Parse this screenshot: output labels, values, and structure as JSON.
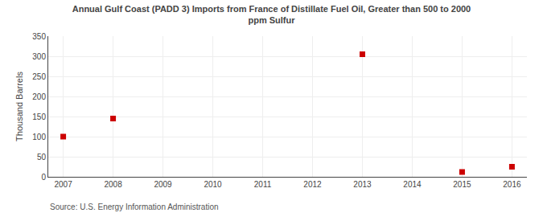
{
  "chart_data": {
    "type": "scatter",
    "title": "Annual Gulf Coast (PADD 3) Imports from France of Distillate Fuel Oil, Greater than 500 to 2000\nppm Sulfur",
    "ylabel": "Thousand Barrels",
    "annotations": [
      "Source: U.S. Energy Information Administration"
    ],
    "x": [
      2007,
      2008,
      2013,
      2015,
      2016
    ],
    "values": [
      100,
      145,
      305,
      12,
      25
    ],
    "color": "#cc0000",
    "marker": "square",
    "xlim": [
      2006.7,
      2016.3
    ],
    "xticks": [
      2007,
      2008,
      2009,
      2010,
      2011,
      2012,
      2013,
      2014,
      2015,
      2016
    ],
    "ylim": [
      0,
      350
    ],
    "yticks": [
      0,
      50,
      100,
      150,
      200,
      250,
      300,
      350
    ],
    "grid": true
  }
}
